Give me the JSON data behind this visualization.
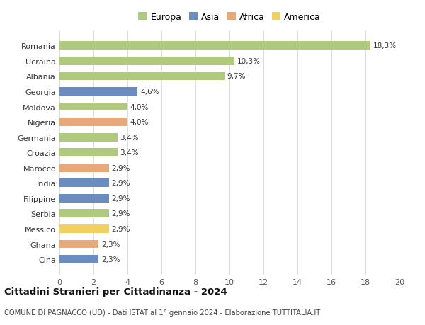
{
  "categories": [
    "Cina",
    "Ghana",
    "Messico",
    "Serbia",
    "Filippine",
    "India",
    "Marocco",
    "Croazia",
    "Germania",
    "Nigeria",
    "Moldova",
    "Georgia",
    "Albania",
    "Ucraina",
    "Romania"
  ],
  "values": [
    2.3,
    2.3,
    2.9,
    2.9,
    2.9,
    2.9,
    2.9,
    3.4,
    3.4,
    4.0,
    4.0,
    4.6,
    9.7,
    10.3,
    18.3
  ],
  "continents": [
    "Asia",
    "Africa",
    "America",
    "Europa",
    "Asia",
    "Asia",
    "Africa",
    "Europa",
    "Europa",
    "Africa",
    "Europa",
    "Asia",
    "Europa",
    "Europa",
    "Europa"
  ],
  "colors": {
    "Europa": "#afc97e",
    "Asia": "#6b8cbf",
    "Africa": "#e8a97a",
    "America": "#f0d060"
  },
  "legend_labels": [
    "Europa",
    "Asia",
    "Africa",
    "America"
  ],
  "title": "Cittadini Stranieri per Cittadinanza - 2024",
  "subtitle": "COMUNE DI PAGNACCO (UD) - Dati ISTAT al 1° gennaio 2024 - Elaborazione TUTTITALIA.IT",
  "xlim": [
    0,
    20
  ],
  "xticks": [
    0,
    2,
    4,
    6,
    8,
    10,
    12,
    14,
    16,
    18,
    20
  ],
  "bg_color": "#ffffff",
  "grid_color": "#dddddd",
  "bar_height": 0.55
}
